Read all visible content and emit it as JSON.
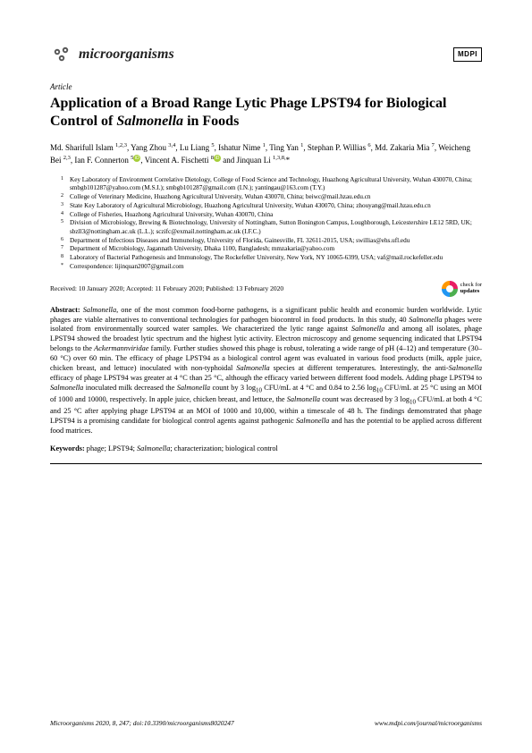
{
  "header": {
    "journal_name": "microorganisms",
    "publisher_badge": "MDPI"
  },
  "article_type": "Article",
  "title_pre": "Application of a Broad Range Lytic Phage LPST94 for Biological Control of ",
  "title_species": "Salmonella",
  "title_post": " in Foods",
  "authors_html": "Md. Sharifull Islam <sup>1,2,3</sup>, Yang Zhou <sup>3,4</sup>, Lu Liang <sup>5</sup>, Ishatur Nime <sup>1</sup>, Ting Yan <sup>1</sup>, Stephan P. Willias <sup>6</sup>, Md. Zakaria Mia <sup>7</sup>, Weicheng Bei <sup>2,3</sup>, Ian F. Connerton <sup>5</sup><span class=\"orcid\">iD</span>, Vincent A. Fischetti <sup>8</sup><span class=\"orcid\">iD</span> and Jinquan Li <sup>1,3,8,</sup>*",
  "affiliations": [
    {
      "n": "1",
      "t": "Key Laboratory of Environment Correlative Dietology, College of Food Science and Technology, Huazhong Agricultural University, Wuhan 430070, China; smbgb101287@yahoo.com (M.S.I.); smbgb101287@gmail.com (I.N.); yantingau@163.com (T.Y.)"
    },
    {
      "n": "2",
      "t": "College of Veterinary Medicine, Huazhong Agricultural University, Wuhan 430070, China; beiwc@mail.hzau.edu.cn"
    },
    {
      "n": "3",
      "t": "State Key Laboratory of Agricultural Microbiology, Huazhong Agricultural University, Wuhan 430070, China; zhouyang@mail.hzau.edu.cn"
    },
    {
      "n": "4",
      "t": "College of Fisheries, Huazhong Agricultural University, Wuhan 430070, China"
    },
    {
      "n": "5",
      "t": "Division of Microbiology, Brewing & Biotechnology, University of Nottingham, Sutton Bonington Campus, Loughborough, Leicestershire LE12 5RD, UK; sbzll3@nottingham.ac.uk (L.L.); sczifc@exmail.nottingham.ac.uk (I.F.C.)"
    },
    {
      "n": "6",
      "t": "Department of Infectious Diseases and Immunology, University of Florida, Gainesville, FL 32611-2015, USA; swillias@ehs.ufl.edu"
    },
    {
      "n": "7",
      "t": "Department of Microbiology, Jagannath University, Dhaka 1100, Bangladesh; mmzakaria@yahoo.com"
    },
    {
      "n": "8",
      "t": "Laboratory of Bacterial Pathogenesis and Immunology, The Rockefeller University, New York, NY 10065-6399, USA; vaf@mail.rockefeller.edu"
    },
    {
      "n": "*",
      "t": "Correspondence: lijinquan2007@gmail.com"
    }
  ],
  "dates": "Received: 10 January 2020; Accepted: 11 February 2020; Published: 13 February 2020",
  "check_updates_line1": "check for",
  "check_updates_line2": "updates",
  "abstract_label": "Abstract:",
  "abstract_body": " <span class=\"species\">Salmonella</span>, one of the most common food-borne pathogens, is a significant public health and economic burden worldwide. Lytic phages are viable alternatives to conventional technologies for pathogen biocontrol in food products. In this study, 40 <span class=\"species\">Salmonella</span> phages were isolated from environmentally sourced water samples. We characterized the lytic range against <span class=\"species\">Salmonella</span> and among all isolates, phage LPST94 showed the broadest lytic spectrum and the highest lytic activity. Electron microscopy and genome sequencing indicated that LPST94 belongs to the <span class=\"species\">Ackermannviridae</span> family. Further studies showed this phage is robust, tolerating a wide range of pH (4–12) and temperature (30–60 °C) over 60 min. The efficacy of phage LPST94 as a biological control agent was evaluated in various food products (milk, apple juice, chicken breast, and lettuce) inoculated with non-typhoidal <span class=\"species\">Salmonella</span> species at different temperatures. Interestingly, the anti-<span class=\"species\">Salmonella</span> efficacy of phage LPST94 was greater at 4 °C than 25 °C, although the efficacy varied between different food models. Adding phage LPST94 to <span class=\"species\">Salmonella</span> inoculated milk decreased the <span class=\"species\">Salmonella</span> count by 3 log<sub>10</sub> CFU/mL at 4 °C and 0.84 to 2.56 log<sub>10</sub> CFU/mL at 25 °C using an MOI of 1000 and 10000, respectively. In apple juice, chicken breast, and lettuce, the <span class=\"species\">Salmonella</span> count was decreased by 3 log<sub>10</sub> CFU/mL at both 4 °C and 25 °C after applying phage LPST94 at an MOI of 1000 and 10,000, within a timescale of 48 h. The findings demonstrated that phage LPST94 is a promising candidate for biological control agents against pathogenic <span class=\"species\">Salmonella</span> and has the potential to be applied across different food matrices.",
  "keywords_label": "Keywords:",
  "keywords_body": " phage; LPST94; <span class=\"species\">Salmonella</span>; characterization; biological control",
  "footer": {
    "left": "Microorganisms 2020, 8, 247; doi:10.3390/microorganisms8020247",
    "right": "www.mdpi.com/journal/microorganisms"
  }
}
